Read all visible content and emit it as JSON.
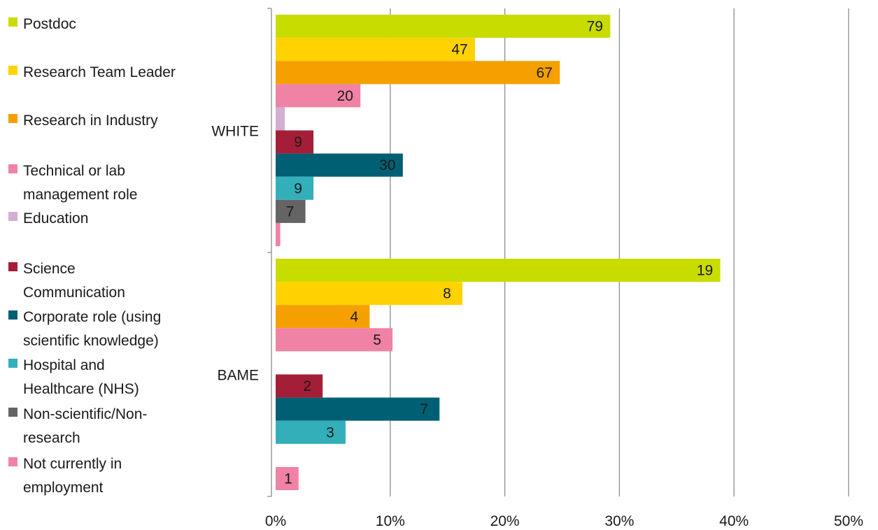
{
  "chart_data": {
    "type": "bar",
    "orientation": "horizontal",
    "xlabel": "",
    "ylabel": "",
    "xlim": [
      0,
      50
    ],
    "x_unit": "%",
    "x_ticks": [
      "0%",
      "10%",
      "20%",
      "30%",
      "40%",
      "50%"
    ],
    "grid": "vertical gridlines",
    "legend_placement": "left",
    "categories": [
      "WHITE",
      "BAME"
    ],
    "series": [
      {
        "name": "Postdoc",
        "color": "#c8dc00",
        "percent": [
          29.2,
          38.8
        ],
        "labels": [
          "79",
          "19"
        ]
      },
      {
        "name": "Research Team Leader",
        "color": "#ffd200",
        "percent": [
          17.4,
          16.3
        ],
        "labels": [
          "47",
          "8"
        ]
      },
      {
        "name": "Research in Industry",
        "color": "#f5a000",
        "percent": [
          24.8,
          8.2
        ],
        "labels": [
          "67",
          "4"
        ]
      },
      {
        "name": "Technical or lab management role",
        "color": "#ef82a5",
        "percent": [
          7.4,
          10.2
        ],
        "labels": [
          "20",
          "5"
        ]
      },
      {
        "name": "Education",
        "color": "#d2afd2",
        "percent": [
          0.8,
          0
        ],
        "labels": [
          "",
          ""
        ]
      },
      {
        "name": "Science Communication",
        "color": "#a51e37",
        "percent": [
          3.3,
          4.1
        ],
        "labels": [
          "9",
          "2"
        ]
      },
      {
        "name": "Corporate role (using scientific knowledge)",
        "color": "#005f73",
        "percent": [
          11.1,
          14.3
        ],
        "labels": [
          "30",
          "7"
        ]
      },
      {
        "name": "Hospital and Healthcare (NHS)",
        "color": "#32afb9",
        "percent": [
          3.3,
          6.1
        ],
        "labels": [
          "9",
          "3"
        ]
      },
      {
        "name": "Non-scientific/Non-research",
        "color": "#646464",
        "percent": [
          2.6,
          0
        ],
        "labels": [
          "7",
          ""
        ]
      },
      {
        "name": "Not currently in employment",
        "color": "#ef82a5",
        "percent": [
          0.4,
          2.0
        ],
        "labels": [
          "",
          "1"
        ]
      }
    ]
  },
  "legend": {
    "items": [
      {
        "label": "Postdoc",
        "color": "#c8dc00"
      },
      {
        "label": "Research Team Leader",
        "color": "#ffd200"
      },
      {
        "label": "Research in Industry",
        "color": "#f5a000"
      },
      {
        "label": "Technical or lab\nmanagement role",
        "color": "#ef82a5"
      },
      {
        "label": "Education",
        "color": "#d2afd2"
      },
      {
        "label": "Science\nCommunication",
        "color": "#a51e37"
      },
      {
        "label": "Corporate role (using\nscientific knowledge)",
        "color": "#005f73"
      },
      {
        "label": "Hospital and\nHealthcare (NHS)",
        "color": "#32afb9"
      },
      {
        "label": "Non-scientific/Non-\nresearch",
        "color": "#646464"
      },
      {
        "label": "Not currently in\nemployment",
        "color": "#ef82a5"
      }
    ]
  }
}
